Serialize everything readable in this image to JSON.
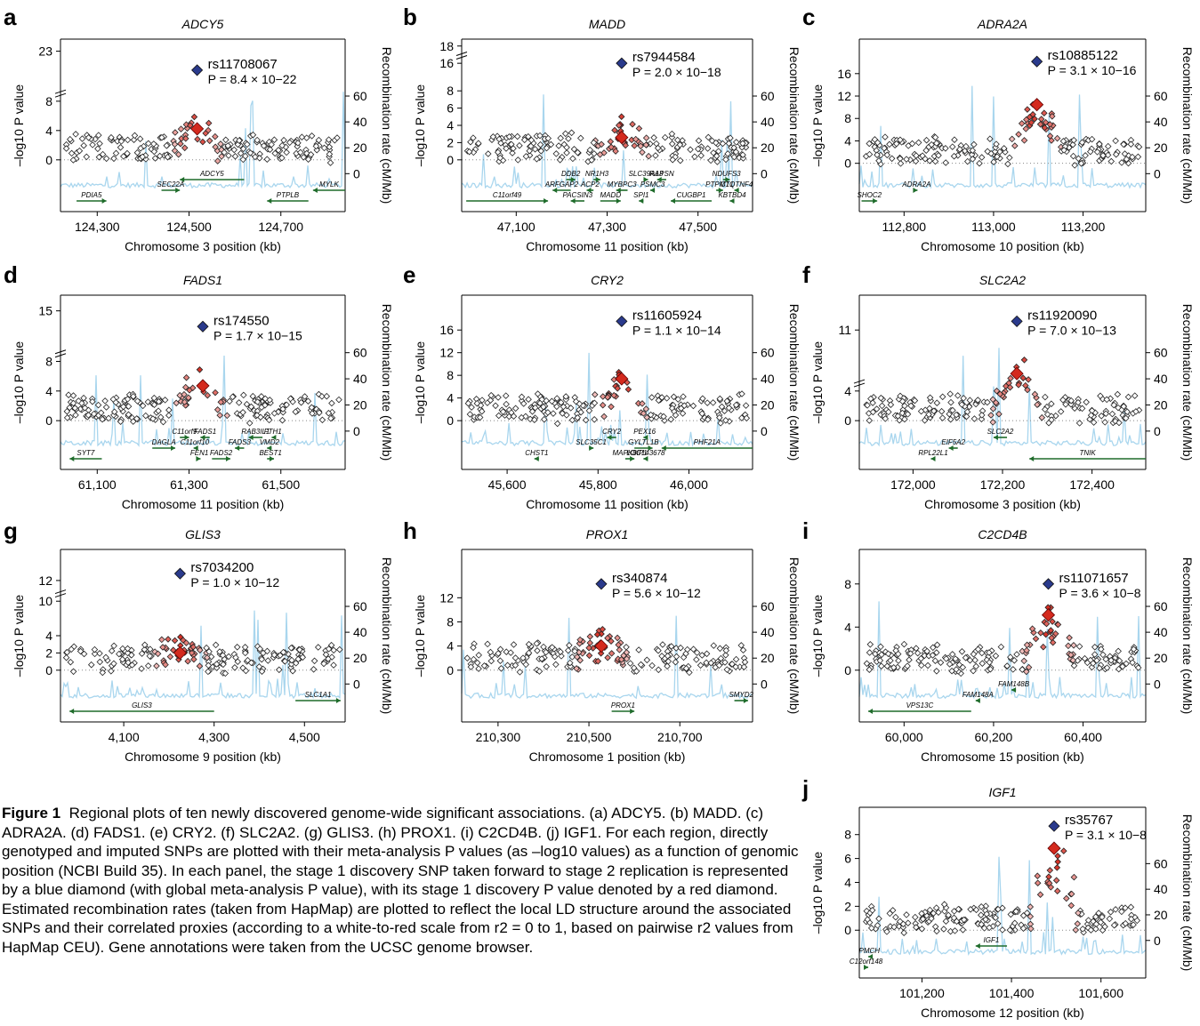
{
  "figure_label": "Figure 1",
  "caption_text": "Regional plots of ten newly discovered genome-wide significant associations. (a) ADCY5. (b) MADD. (c) ADRA2A. (d) FADS1. (e) CRY2. (f) SLC2A2. (g) GLIS3. (h) PROX1. (i) C2CD4B. (j) IGF1. For each region, directly genotyped and imputed SNPs are plotted with their meta-analysis P values (as –log10 values) as a function of genomic position (NCBI Build 35). In each panel, the stage 1 discovery SNP taken forward to stage 2 replication is represented by a blue diamond (with global meta-analysis P value), with its stage 1 discovery P value denoted by a red diamond. Estimated recombination rates (taken from HapMap) are plotted to reflect the local LD structure around the associated SNPs and their correlated proxies (according to a white-to-red scale from r2 = 0 to 1, based on pairwise r2 values from HapMap CEU). Gene annotations were taken from the UCSC genome browser.",
  "y_axis_label": "–log10 P value",
  "y2_axis_label": "Recombination rate (cM/Mb)",
  "colors": {
    "recomb": "#a9d6ee",
    "gene": "#1e6b2a",
    "blue_snp": "#2a3a8c",
    "red_high": "#d42a1e",
    "red_low": "#f6dada"
  },
  "chart_data": [
    {
      "panel": "a",
      "type": "scatter",
      "title": "ADCY5",
      "xlabel": "Chromosome 3 position (kb)",
      "xlim": [
        124220,
        124840
      ],
      "xticks": [
        124300,
        124500,
        124700
      ],
      "yticks": [
        "0",
        "4",
        "8",
        "23"
      ],
      "y2ticks": [
        "0",
        "20",
        "40",
        "60"
      ],
      "snp": "rs11708067",
      "p": "P = 8.4 × 10−22",
      "y_break": true,
      "genes": [
        {
          "name": "PDIA5",
          "start": 124255,
          "end": 124320,
          "dir": "+"
        },
        {
          "name": "SEC22A",
          "start": 124440,
          "end": 124480,
          "dir": "+"
        },
        {
          "name": "ADCY5",
          "start": 124480,
          "end": 124620,
          "dir": "-"
        },
        {
          "name": "PTPLB",
          "start": 124670,
          "end": 124760,
          "dir": "-"
        },
        {
          "name": "MYLK",
          "start": 124770,
          "end": 124840,
          "dir": "-"
        }
      ]
    },
    {
      "panel": "b",
      "type": "scatter",
      "title": "MADD",
      "xlabel": "Chromosome 11 position (kb)",
      "xlim": [
        46980,
        47620
      ],
      "xticks": [
        47100,
        47300,
        47500
      ],
      "yticks": [
        "0",
        "2",
        "4",
        "6",
        "8",
        "16",
        "18"
      ],
      "y2ticks": [
        "0",
        "20",
        "40",
        "60"
      ],
      "snp": "rs7944584",
      "p": "P = 2.0 × 10−18",
      "y_break": true,
      "genes": [
        {
          "name": "C11orf49",
          "start": 46990,
          "end": 47170,
          "dir": "+"
        },
        {
          "name": "ARFGAP2",
          "start": 47180,
          "end": 47220,
          "dir": "-"
        },
        {
          "name": "DDB2",
          "start": 47210,
          "end": 47230,
          "dir": "+"
        },
        {
          "name": "PACSIN3",
          "start": 47220,
          "end": 47250,
          "dir": "-"
        },
        {
          "name": "ACP2",
          "start": 47255,
          "end": 47270,
          "dir": "-"
        },
        {
          "name": "NR1H3",
          "start": 47270,
          "end": 47285,
          "dir": "+"
        },
        {
          "name": "MADD",
          "start": 47285,
          "end": 47330,
          "dir": "+"
        },
        {
          "name": "MYBPC3",
          "start": 47320,
          "end": 47345,
          "dir": "-"
        },
        {
          "name": "SLC39A13",
          "start": 47380,
          "end": 47390,
          "dir": "+"
        },
        {
          "name": "SPI1",
          "start": 47370,
          "end": 47380,
          "dir": "-"
        },
        {
          "name": "PSMC3",
          "start": 47395,
          "end": 47405,
          "dir": "-"
        },
        {
          "name": "RAPSN",
          "start": 47410,
          "end": 47430,
          "dir": "-"
        },
        {
          "name": "CUGBP1",
          "start": 47440,
          "end": 47530,
          "dir": "-"
        },
        {
          "name": "PTPMT1",
          "start": 47540,
          "end": 47555,
          "dir": "+"
        },
        {
          "name": "NDUFS3",
          "start": 47555,
          "end": 47570,
          "dir": "+"
        },
        {
          "name": "KBTBD4",
          "start": 47570,
          "end": 47580,
          "dir": "-"
        },
        {
          "name": "C1QTNF4",
          "start": 47580,
          "end": 47590,
          "dir": "-"
        }
      ]
    },
    {
      "panel": "c",
      "type": "scatter",
      "title": "ADRA2A",
      "xlabel": "Chromosome 10 position (kb)",
      "xlim": [
        112700,
        113340
      ],
      "xticks": [
        112800,
        113000,
        113200
      ],
      "yticks": [
        "0",
        "4",
        "8",
        "12",
        "16"
      ],
      "y2ticks": [
        "0",
        "20",
        "40",
        "60"
      ],
      "snp": "rs10885122",
      "p": "P = 3.1 × 10−16",
      "y_break": false,
      "genes": [
        {
          "name": "SHOC2",
          "start": 112705,
          "end": 112740,
          "dir": "+"
        },
        {
          "name": "ADRA2A",
          "start": 112826,
          "end": 112830,
          "dir": "+"
        }
      ]
    },
    {
      "panel": "d",
      "type": "scatter",
      "title": "FADS1",
      "xlabel": "Chromosome 11 position (kb)",
      "xlim": [
        61020,
        61640
      ],
      "xticks": [
        61100,
        61300,
        61500
      ],
      "yticks": [
        "0",
        "4",
        "8",
        "15"
      ],
      "y2ticks": [
        "0",
        "20",
        "40",
        "60"
      ],
      "snp": "rs174550",
      "p": "P = 1.7 × 10−15",
      "y_break": true,
      "genes": [
        {
          "name": "SYT7",
          "start": 61040,
          "end": 61110,
          "dir": "-"
        },
        {
          "name": "DAGLA",
          "start": 61220,
          "end": 61270,
          "dir": "+"
        },
        {
          "name": "C11orf9",
          "start": 61280,
          "end": 61300,
          "dir": "+"
        },
        {
          "name": "FEN1",
          "start": 61320,
          "end": 61325,
          "dir": "+"
        },
        {
          "name": "C11orf10",
          "start": 61310,
          "end": 61315,
          "dir": "-"
        },
        {
          "name": "FADS1",
          "start": 61325,
          "end": 61345,
          "dir": "-"
        },
        {
          "name": "FADS2",
          "start": 61350,
          "end": 61390,
          "dir": "+"
        },
        {
          "name": "FADS3",
          "start": 61400,
          "end": 61420,
          "dir": "-"
        },
        {
          "name": "RAB3IL1",
          "start": 61430,
          "end": 61460,
          "dir": "-"
        },
        {
          "name": "BEST1",
          "start": 61470,
          "end": 61485,
          "dir": "+"
        },
        {
          "name": "VMD2",
          "start": 61470,
          "end": 61480,
          "dir": "-"
        },
        {
          "name": "FTH1",
          "start": 61480,
          "end": 61485,
          "dir": "-"
        }
      ]
    },
    {
      "panel": "e",
      "type": "scatter",
      "title": "CRY2",
      "xlabel": "Chromosome 11 position (kb)",
      "xlim": [
        45500,
        46140
      ],
      "xticks": [
        45600,
        45800,
        46000
      ],
      "yticks": [
        "0",
        "4",
        "8",
        "12",
        "16"
      ],
      "y2ticks": [
        "0",
        "20",
        "40",
        "60"
      ],
      "snp": "rs11605924",
      "p": "P = 1.1 × 10−14",
      "y_break": false,
      "genes": [
        {
          "name": "CHST1",
          "start": 45660,
          "end": 45670,
          "dir": "-"
        },
        {
          "name": "SLC35C1",
          "start": 45780,
          "end": 45790,
          "dir": "+"
        },
        {
          "name": "CRY2",
          "start": 45820,
          "end": 45840,
          "dir": "-"
        },
        {
          "name": "MAPK8IP1",
          "start": 45860,
          "end": 45880,
          "dir": "+"
        },
        {
          "name": "GYLTL1B",
          "start": 45880,
          "end": 45920,
          "dir": "+"
        },
        {
          "name": "PEX16",
          "start": 45900,
          "end": 45905,
          "dir": "-"
        },
        {
          "name": "LOC143678",
          "start": 45900,
          "end": 45910,
          "dir": "-"
        },
        {
          "name": "PHF21A",
          "start": 45940,
          "end": 46140,
          "dir": "-"
        }
      ]
    },
    {
      "panel": "f",
      "type": "scatter",
      "title": "SLC2A2",
      "xlabel": "Chromosome 3 position (kb)",
      "xlim": [
        171880,
        172520
      ],
      "xticks": [
        172000,
        172200,
        172400
      ],
      "yticks": [
        "0",
        "4",
        "11"
      ],
      "y2ticks": [
        "0",
        "20",
        "40",
        "60"
      ],
      "snp": "rs11920090",
      "p": "P = 7.0 × 10−13",
      "y_break": true,
      "genes": [
        {
          "name": "RPL22L1",
          "start": 172040,
          "end": 172050,
          "dir": "-"
        },
        {
          "name": "EIF5A2",
          "start": 172080,
          "end": 172100,
          "dir": "-"
        },
        {
          "name": "SLC2A2",
          "start": 172180,
          "end": 172210,
          "dir": "-"
        },
        {
          "name": "TNIK",
          "start": 172260,
          "end": 172520,
          "dir": "-"
        }
      ]
    },
    {
      "panel": "g",
      "type": "scatter",
      "title": "GLIS3",
      "xlabel": "Chromosome 9 position (kb)",
      "xlim": [
        3960,
        4590
      ],
      "xticks": [
        4100,
        4300,
        4500
      ],
      "yticks": [
        "0",
        "2",
        "4",
        "10",
        "12"
      ],
      "y2ticks": [
        "0",
        "20",
        "40",
        "60"
      ],
      "snp": "rs7034200",
      "p": "P = 1.0 × 10−12",
      "y_break": true,
      "genes": [
        {
          "name": "GLIS3",
          "start": 3980,
          "end": 4300,
          "dir": "-"
        },
        {
          "name": "SLC1A1",
          "start": 4480,
          "end": 4580,
          "dir": "+"
        }
      ]
    },
    {
      "panel": "h",
      "type": "scatter",
      "title": "PROX1",
      "xlabel": "Chromosome 1 position (kb)",
      "xlim": [
        210220,
        210860
      ],
      "xticks": [
        210300,
        210500,
        210700
      ],
      "yticks": [
        "0",
        "4",
        "8",
        "12"
      ],
      "y2ticks": [
        "0",
        "20",
        "40",
        "60"
      ],
      "snp": "rs340874",
      "p": "P = 5.6 × 10−12",
      "y_break": false,
      "genes": [
        {
          "name": "PROX1",
          "start": 210550,
          "end": 210600,
          "dir": "+"
        },
        {
          "name": "SMYD2",
          "start": 210820,
          "end": 210850,
          "dir": "+"
        }
      ]
    },
    {
      "panel": "i",
      "type": "scatter",
      "title": "C2CD4B",
      "xlabel": "Chromosome 15 position (kb)",
      "xlim": [
        59900,
        60540
      ],
      "xticks": [
        60000,
        60200,
        60400
      ],
      "yticks": [
        "0",
        "4",
        "8"
      ],
      "y2ticks": [
        "0",
        "20",
        "40",
        "60"
      ],
      "snp": "rs11071657",
      "p": "P = 3.6 × 10−8",
      "y_break": false,
      "genes": [
        {
          "name": "VPS13C",
          "start": 59920,
          "end": 60150,
          "dir": "-"
        },
        {
          "name": "FAM148A",
          "start": 60160,
          "end": 60170,
          "dir": "-"
        },
        {
          "name": "FAM148B",
          "start": 60240,
          "end": 60250,
          "dir": "-"
        }
      ]
    },
    {
      "panel": "j",
      "type": "scatter",
      "title": "IGF1",
      "xlabel": "Chromosome 12 position (kb)",
      "xlim": [
        101060,
        101700
      ],
      "xticks": [
        101200,
        101400,
        101600
      ],
      "yticks": [
        "0",
        "2",
        "4",
        "6",
        "8"
      ],
      "y2ticks": [
        "0",
        "20",
        "40",
        "60"
      ],
      "snp": "rs35767",
      "p": "P = 3.1 × 10−8",
      "y_break": false,
      "genes": [
        {
          "name": "C12orf148",
          "start": 101070,
          "end": 101080,
          "dir": "+"
        },
        {
          "name": "PMCH",
          "start": 101080,
          "end": 101085,
          "dir": "-"
        },
        {
          "name": "IGF1",
          "start": 101320,
          "end": 101390,
          "dir": "-"
        }
      ]
    }
  ]
}
